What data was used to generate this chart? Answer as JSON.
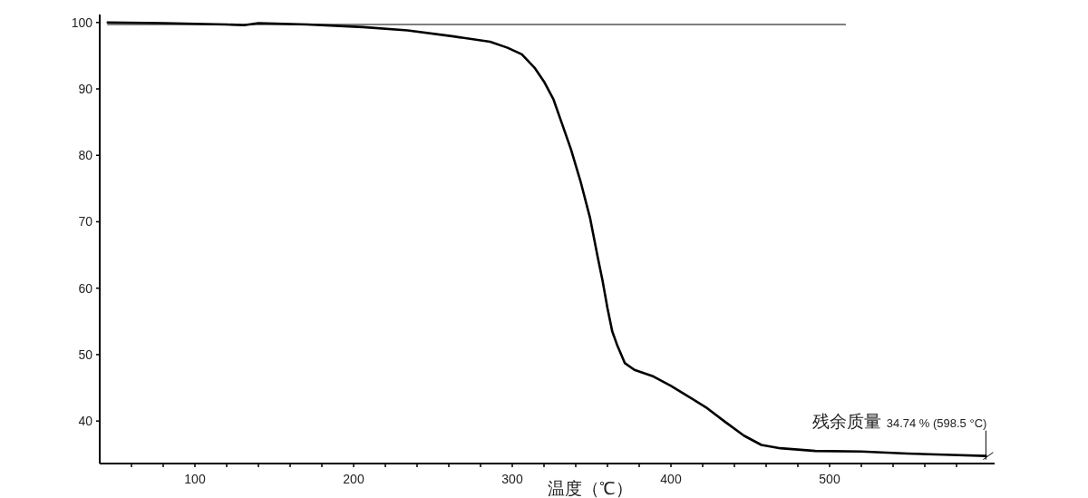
{
  "chart_data": {
    "type": "line",
    "xlabel": "温度（℃）",
    "xlim": [
      40,
      604
    ],
    "ylim": [
      33.6,
      101.2
    ],
    "xticks": [
      {
        "value": 60,
        "label": null
      },
      {
        "value": 80,
        "label": null
      },
      100,
      {
        "value": 120,
        "label": null
      },
      {
        "value": 140,
        "label": null
      },
      {
        "value": 160,
        "label": null
      },
      {
        "value": 180,
        "label": null
      },
      200,
      {
        "value": 220,
        "label": null
      },
      {
        "value": 240,
        "label": null
      },
      {
        "value": 260,
        "label": null
      },
      {
        "value": 280,
        "label": null
      },
      300,
      {
        "value": 320,
        "label": null
      },
      {
        "value": 340,
        "label": null
      },
      {
        "value": 360,
        "label": null
      },
      {
        "value": 380,
        "label": null
      },
      400,
      {
        "value": 420,
        "label": null
      },
      {
        "value": 440,
        "label": null
      },
      {
        "value": 460,
        "label": null
      },
      {
        "value": 480,
        "label": null
      },
      500,
      {
        "value": 520,
        "label": null
      },
      {
        "value": 540,
        "label": null
      },
      {
        "value": 560,
        "label": null
      },
      {
        "value": 580,
        "label": null
      }
    ],
    "yticks": [
      40,
      50,
      60,
      70,
      80,
      90,
      100
    ],
    "grid": false,
    "marker": "none",
    "line_style": "solid",
    "series": [
      {
        "color": "#000000",
        "x": [
          45,
          80,
          120,
          131,
          140,
          171,
          206,
          234,
          263,
          286,
          297,
          306,
          314,
          320,
          326,
          331,
          337,
          343,
          349,
          354,
          357,
          360,
          363,
          366,
          371,
          377,
          389,
          400,
          411,
          423,
          434,
          446,
          457,
          469,
          491,
          520,
          549,
          577,
          598.5
        ],
        "values": [
          100.0,
          99.9,
          99.7,
          99.6,
          99.9,
          99.7,
          99.3,
          98.8,
          97.9,
          97.1,
          96.2,
          95.2,
          93.2,
          91.1,
          88.4,
          85.0,
          80.9,
          76.1,
          70.6,
          64.5,
          61.0,
          57.0,
          53.5,
          51.5,
          48.7,
          47.7,
          46.7,
          45.3,
          43.7,
          41.9,
          39.9,
          37.8,
          36.4,
          35.9,
          35.5,
          35.4,
          35.1,
          34.9,
          34.74
        ]
      },
      {
        "color": "#000000",
        "x": [
          45,
          510
        ],
        "values": [
          99.7,
          99.7
        ]
      }
    ],
    "annotations": [
      {
        "text": "残余质量 34.74 % (598.5 °C)",
        "x": 598.5,
        "y": 34.74
      }
    ]
  }
}
